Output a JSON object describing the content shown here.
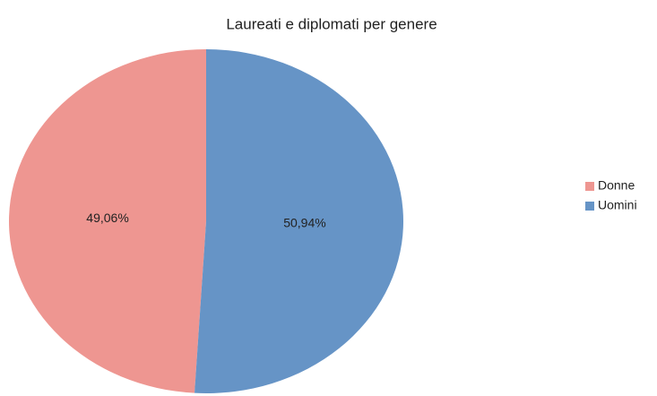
{
  "chart_data": {
    "type": "pie",
    "title": "Laureati e diplomati per genere",
    "categories": [
      "Donne",
      "Uomini"
    ],
    "values": [
      49.06,
      50.94
    ],
    "value_labels": [
      "49,06%",
      "50,94%"
    ],
    "colors": [
      "#ee9691",
      "#6694c6"
    ],
    "legend": "right"
  }
}
